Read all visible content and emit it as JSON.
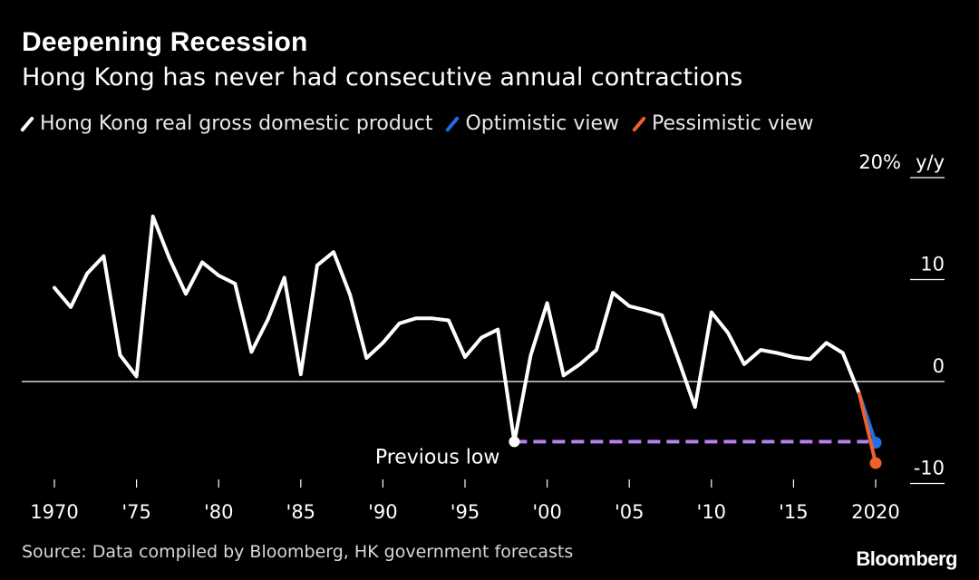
{
  "header": {
    "title": "Deepening Recession",
    "subtitle": "Hong Kong has never had consecutive annual contractions"
  },
  "legend": [
    {
      "label": "Hong Kong real gross domestic product",
      "color": "#ffffff"
    },
    {
      "label": "Optimistic view",
      "color": "#1f6fe8"
    },
    {
      "label": "Pessimistic view",
      "color": "#f0602a"
    }
  ],
  "footer": {
    "source": "Source: Data compiled by Bloomberg, HK government forecasts",
    "brand": "Bloomberg"
  },
  "chart_data": {
    "type": "line",
    "x_range": [
      1969,
      2022
    ],
    "ylim": [
      -13,
      20
    ],
    "y_unit_label": "y/y",
    "y_ticks": [
      {
        "value": 20,
        "label": "20%"
      },
      {
        "value": 10,
        "label": "10"
      },
      {
        "value": 0,
        "label": "0"
      },
      {
        "value": -10,
        "label": "-10"
      }
    ],
    "x_ticks": [
      {
        "value": 1970,
        "label": "1970"
      },
      {
        "value": 1975,
        "label": "'75"
      },
      {
        "value": 1980,
        "label": "'80"
      },
      {
        "value": 1985,
        "label": "'85"
      },
      {
        "value": 1990,
        "label": "'90"
      },
      {
        "value": 1995,
        "label": "'95"
      },
      {
        "value": 2000,
        "label": "'00"
      },
      {
        "value": 2005,
        "label": "'05"
      },
      {
        "value": 2010,
        "label": "'10"
      },
      {
        "value": 2015,
        "label": "'15"
      },
      {
        "value": 2020,
        "label": "2020"
      }
    ],
    "grid": false,
    "series": [
      {
        "name": "Hong Kong real gross domestic product",
        "color": "#ffffff",
        "x": [
          1970,
          1971,
          1972,
          1973,
          1974,
          1975,
          1976,
          1977,
          1978,
          1979,
          1980,
          1981,
          1982,
          1983,
          1984,
          1985,
          1986,
          1987,
          1988,
          1989,
          1990,
          1991,
          1992,
          1993,
          1994,
          1995,
          1996,
          1997,
          1998,
          1999,
          2000,
          2001,
          2002,
          2003,
          2004,
          2005,
          2006,
          2007,
          2008,
          2009,
          2010,
          2011,
          2012,
          2013,
          2014,
          2015,
          2016,
          2017,
          2018,
          2019
        ],
        "y": [
          9.2,
          7.3,
          10.6,
          12.3,
          2.6,
          0.5,
          16.2,
          12.1,
          8.6,
          11.7,
          10.4,
          9.6,
          2.9,
          6.1,
          10.2,
          0.7,
          11.4,
          12.7,
          8.5,
          2.3,
          3.8,
          5.7,
          6.2,
          6.2,
          6.0,
          2.4,
          4.3,
          5.1,
          -5.9,
          2.6,
          7.7,
          0.6,
          1.7,
          3.1,
          8.7,
          7.4,
          7.0,
          6.5,
          2.1,
          -2.5,
          6.8,
          4.8,
          1.7,
          3.1,
          2.8,
          2.4,
          2.2,
          3.8,
          2.8,
          -1.2
        ]
      },
      {
        "name": "Optimistic view",
        "color": "#1f6fe8",
        "x": [
          2019,
          2020
        ],
        "y": [
          -1.2,
          -6.0
        ]
      },
      {
        "name": "Pessimistic view",
        "color": "#f0602a",
        "x": [
          2019,
          2020
        ],
        "y": [
          -1.2,
          -8.0
        ]
      }
    ],
    "reference_line": {
      "label": "Previous low",
      "value": -5.9,
      "x_start": 1998,
      "x_end": 2020,
      "color": "#b77ff2",
      "style": "dashed"
    }
  }
}
